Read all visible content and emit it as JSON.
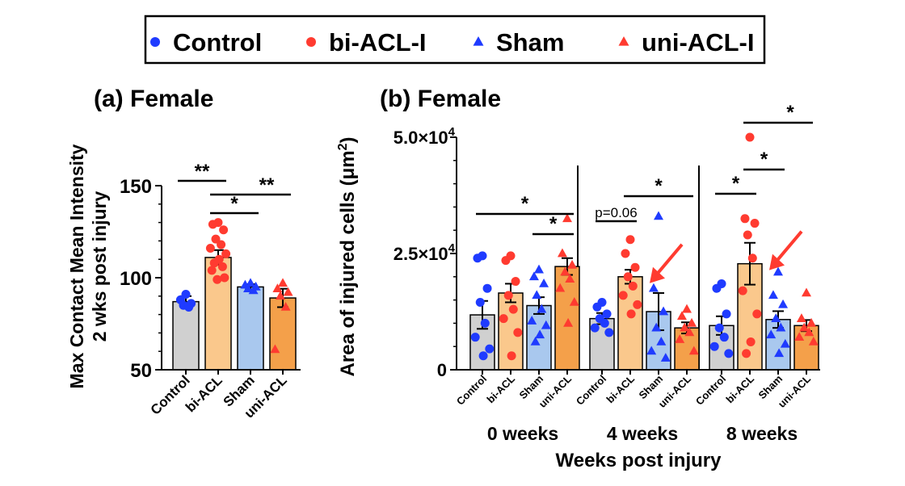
{
  "legend": {
    "items": [
      {
        "label": "Control",
        "color": "#1f3bff",
        "marker": "circle"
      },
      {
        "label": "bi-ACL-I",
        "color": "#ff3b30",
        "marker": "circle"
      },
      {
        "label": "Sham",
        "color": "#1f3bff",
        "marker": "triangle"
      },
      {
        "label": "uni-ACL-I",
        "color": "#ff3b30",
        "marker": "triangle"
      }
    ]
  },
  "colors": {
    "control_bar": "#d0d0d0",
    "biacl_bar": "#fac88c",
    "sham_bar": "#a9c8ee",
    "uniacl_bar": "#f4a04a",
    "blue_point": "#1f3bff",
    "red_point": "#ff3b30",
    "arrow": "#ff3b30"
  },
  "chart_data": [
    {
      "type": "bar",
      "panel_title": "(a) Female",
      "ylabel_line1": "Max Contact Mean Intensity",
      "ylabel_line2": "2 wks post injury",
      "ylim": [
        50,
        150
      ],
      "yticks": [
        "50",
        "100",
        "150"
      ],
      "ytick_values": [
        50,
        100,
        150
      ],
      "categories": [
        "Control",
        "bi-ACL",
        "Sham",
        "uni-ACL"
      ],
      "values": [
        87,
        111,
        95,
        89
      ],
      "errors": [
        3,
        4,
        1.5,
        5
      ],
      "points": [
        [
          91,
          88,
          86,
          85,
          84
        ],
        [
          130,
          129,
          126,
          121,
          118,
          116,
          113,
          110,
          108,
          106,
          104,
          100,
          99
        ],
        [
          97,
          96,
          95,
          94,
          93
        ],
        [
          97,
          94,
          92,
          90,
          84,
          61
        ]
      ],
      "significance": [
        {
          "from": 0,
          "to": 1,
          "label": "**"
        },
        {
          "from": 1,
          "to": 2,
          "label": "*"
        },
        {
          "from": 1,
          "to": 3,
          "label": "**"
        }
      ]
    },
    {
      "type": "bar",
      "panel_title": "(b) Female",
      "ylabel": "Area of injured cells (µm²)",
      "ylabel_text": "Area of injured cells (μm",
      "ylabel_sup": "2",
      "ylabel_end": ")",
      "xlabel": "Weeks post injury",
      "ylim": [
        0,
        50000
      ],
      "yticks": [
        {
          "value": 0,
          "base": "0",
          "exp": ""
        },
        {
          "value": 25000,
          "base": "2.5×10",
          "exp": "4"
        },
        {
          "value": 50000,
          "base": "5.0×10",
          "exp": "4"
        }
      ],
      "groups": [
        {
          "label": "0 weeks",
          "categories": [
            "Control",
            "bi-ACL",
            "Sham",
            "uni-ACL"
          ],
          "values": [
            11800,
            16500,
            13800,
            22200
          ],
          "errors": [
            3000,
            2000,
            1800,
            1800
          ],
          "points": [
            [
              24500,
              24000,
              17500,
              14500,
              10000,
              7000,
              4500,
              3000
            ],
            [
              24500,
              23500,
              19000,
              16000,
              13000,
              11000,
              8000,
              3000
            ],
            [
              21500,
              20000,
              18500,
              16000,
              13000,
              10500,
              9500,
              7500,
              6000
            ],
            [
              32500,
              25000,
              22500,
              21000,
              19500,
              17500,
              14500,
              10000
            ]
          ],
          "significance": [
            {
              "from": 0,
              "to": 3,
              "label": "*"
            },
            {
              "from": 2,
              "to": 3,
              "label": "*"
            }
          ]
        },
        {
          "label": "4 weeks",
          "categories": [
            "Control",
            "bi-ACL",
            "Sham",
            "uni-ACL"
          ],
          "values": [
            11000,
            20000,
            12500,
            9000
          ],
          "errors": [
            1200,
            1500,
            4000,
            1200
          ],
          "points": [
            [
              14500,
              13500,
              12000,
              11000,
              10000,
              9000,
              8000
            ],
            [
              28000,
              25000,
              22000,
              20000,
              18000,
              16000,
              14000,
              12000
            ],
            [
              33000,
              17500,
              12500,
              9000,
              6000,
              4000,
              2500
            ],
            [
              13000,
              11500,
              10000,
              9000,
              8000,
              6500,
              4000
            ]
          ],
          "significance": [
            {
              "from": 0,
              "to": 1,
              "label": "p=0.06"
            },
            {
              "from": 1,
              "to": 3,
              "label": "*"
            }
          ],
          "arrow_target": 1
        },
        {
          "label": "8 weeks",
          "categories": [
            "Control",
            "bi-ACL",
            "Sham",
            "uni-ACL"
          ],
          "values": [
            9500,
            22800,
            10800,
            9500
          ],
          "errors": [
            2000,
            4500,
            1800,
            1200
          ],
          "points": [
            [
              18500,
              17500,
              12000,
              9000,
              7000,
              5000,
              3500
            ],
            [
              50000,
              32500,
              31500,
              29000,
              24000,
              17000,
              12000,
              6000,
              3500
            ],
            [
              21000,
              16000,
              14000,
              11000,
              9000,
              7500,
              5500,
              3500
            ],
            [
              16500,
              11000,
              10000,
              9000,
              8000,
              7000,
              6000
            ]
          ],
          "significance": [
            {
              "from": 0,
              "to": 1,
              "label": "*"
            },
            {
              "from": 1,
              "to": 2,
              "label": "*"
            },
            {
              "from": 1,
              "to": 3,
              "label": "*"
            }
          ],
          "arrow_target": 1
        }
      ]
    }
  ]
}
